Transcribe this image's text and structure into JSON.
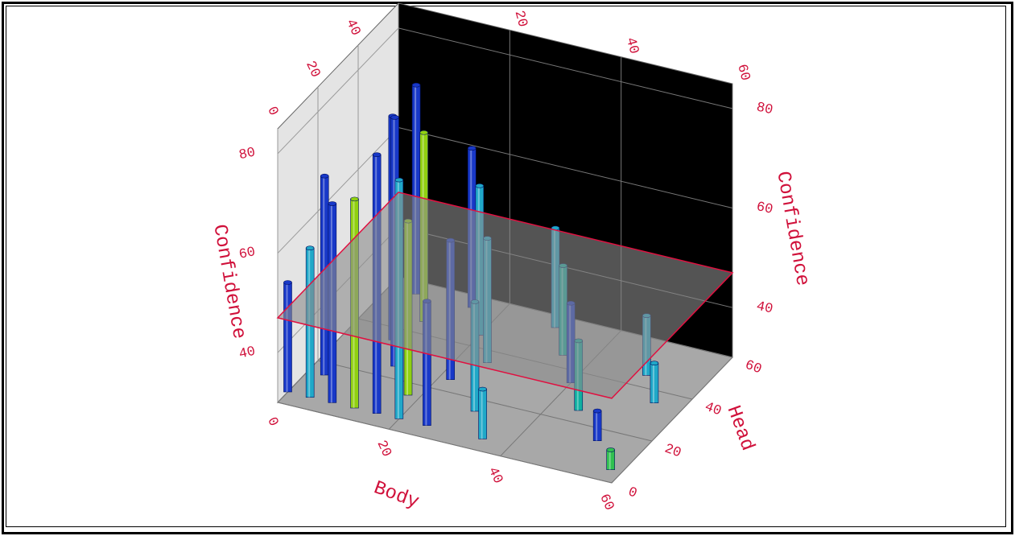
{
  "chart_data": {
    "type": "bar3d",
    "xlabel": "Body",
    "ylabel": "Head",
    "zlabel": "Confidence",
    "xlim": [
      0,
      60
    ],
    "ylim": [
      0,
      60
    ],
    "zlim": [
      30,
      85
    ],
    "xticks": [
      0,
      20,
      40,
      60
    ],
    "yticks": [
      0,
      20,
      40,
      60
    ],
    "zticks": [
      40,
      60,
      80
    ],
    "threshold": 47,
    "bars": {
      "body": [
        5,
        15,
        30,
        10,
        20,
        35,
        50,
        8,
        25,
        40,
        55,
        12,
        22,
        45,
        3,
        18,
        30,
        52,
        0,
        4,
        8,
        12,
        16,
        20,
        25,
        35,
        58
      ],
      "head": [
        55,
        55,
        55,
        45,
        45,
        45,
        45,
        35,
        35,
        35,
        35,
        25,
        25,
        25,
        15,
        15,
        15,
        15,
        5,
        5,
        5,
        5,
        5,
        5,
        5,
        5,
        5
      ],
      "values": [
        72,
        62,
        50,
        68,
        60,
        48,
        42,
        75,
        55,
        46,
        38,
        80,
        58,
        44,
        70,
        65,
        52,
        36,
        52,
        60,
        70,
        72,
        82,
        78,
        55,
        40,
        34
      ],
      "colors": [
        "#1838c8",
        "#1838c8",
        "#20a8c8",
        "#90d010",
        "#20a8c8",
        "#10b0a0",
        "#20a8c8",
        "#1838c8",
        "#20a8c8",
        "#1838c8",
        "#20a8c8",
        "#1838c8",
        "#1838c8",
        "#10b0a0",
        "#1838c8",
        "#90d010",
        "#20a8c8",
        "#1838c8",
        "#1838c8",
        "#20a8c8",
        "#1838c8",
        "#90d010",
        "#1838c8",
        "#20a8c8",
        "#1838c8",
        "#20a8c8",
        "#30c050"
      ]
    }
  }
}
